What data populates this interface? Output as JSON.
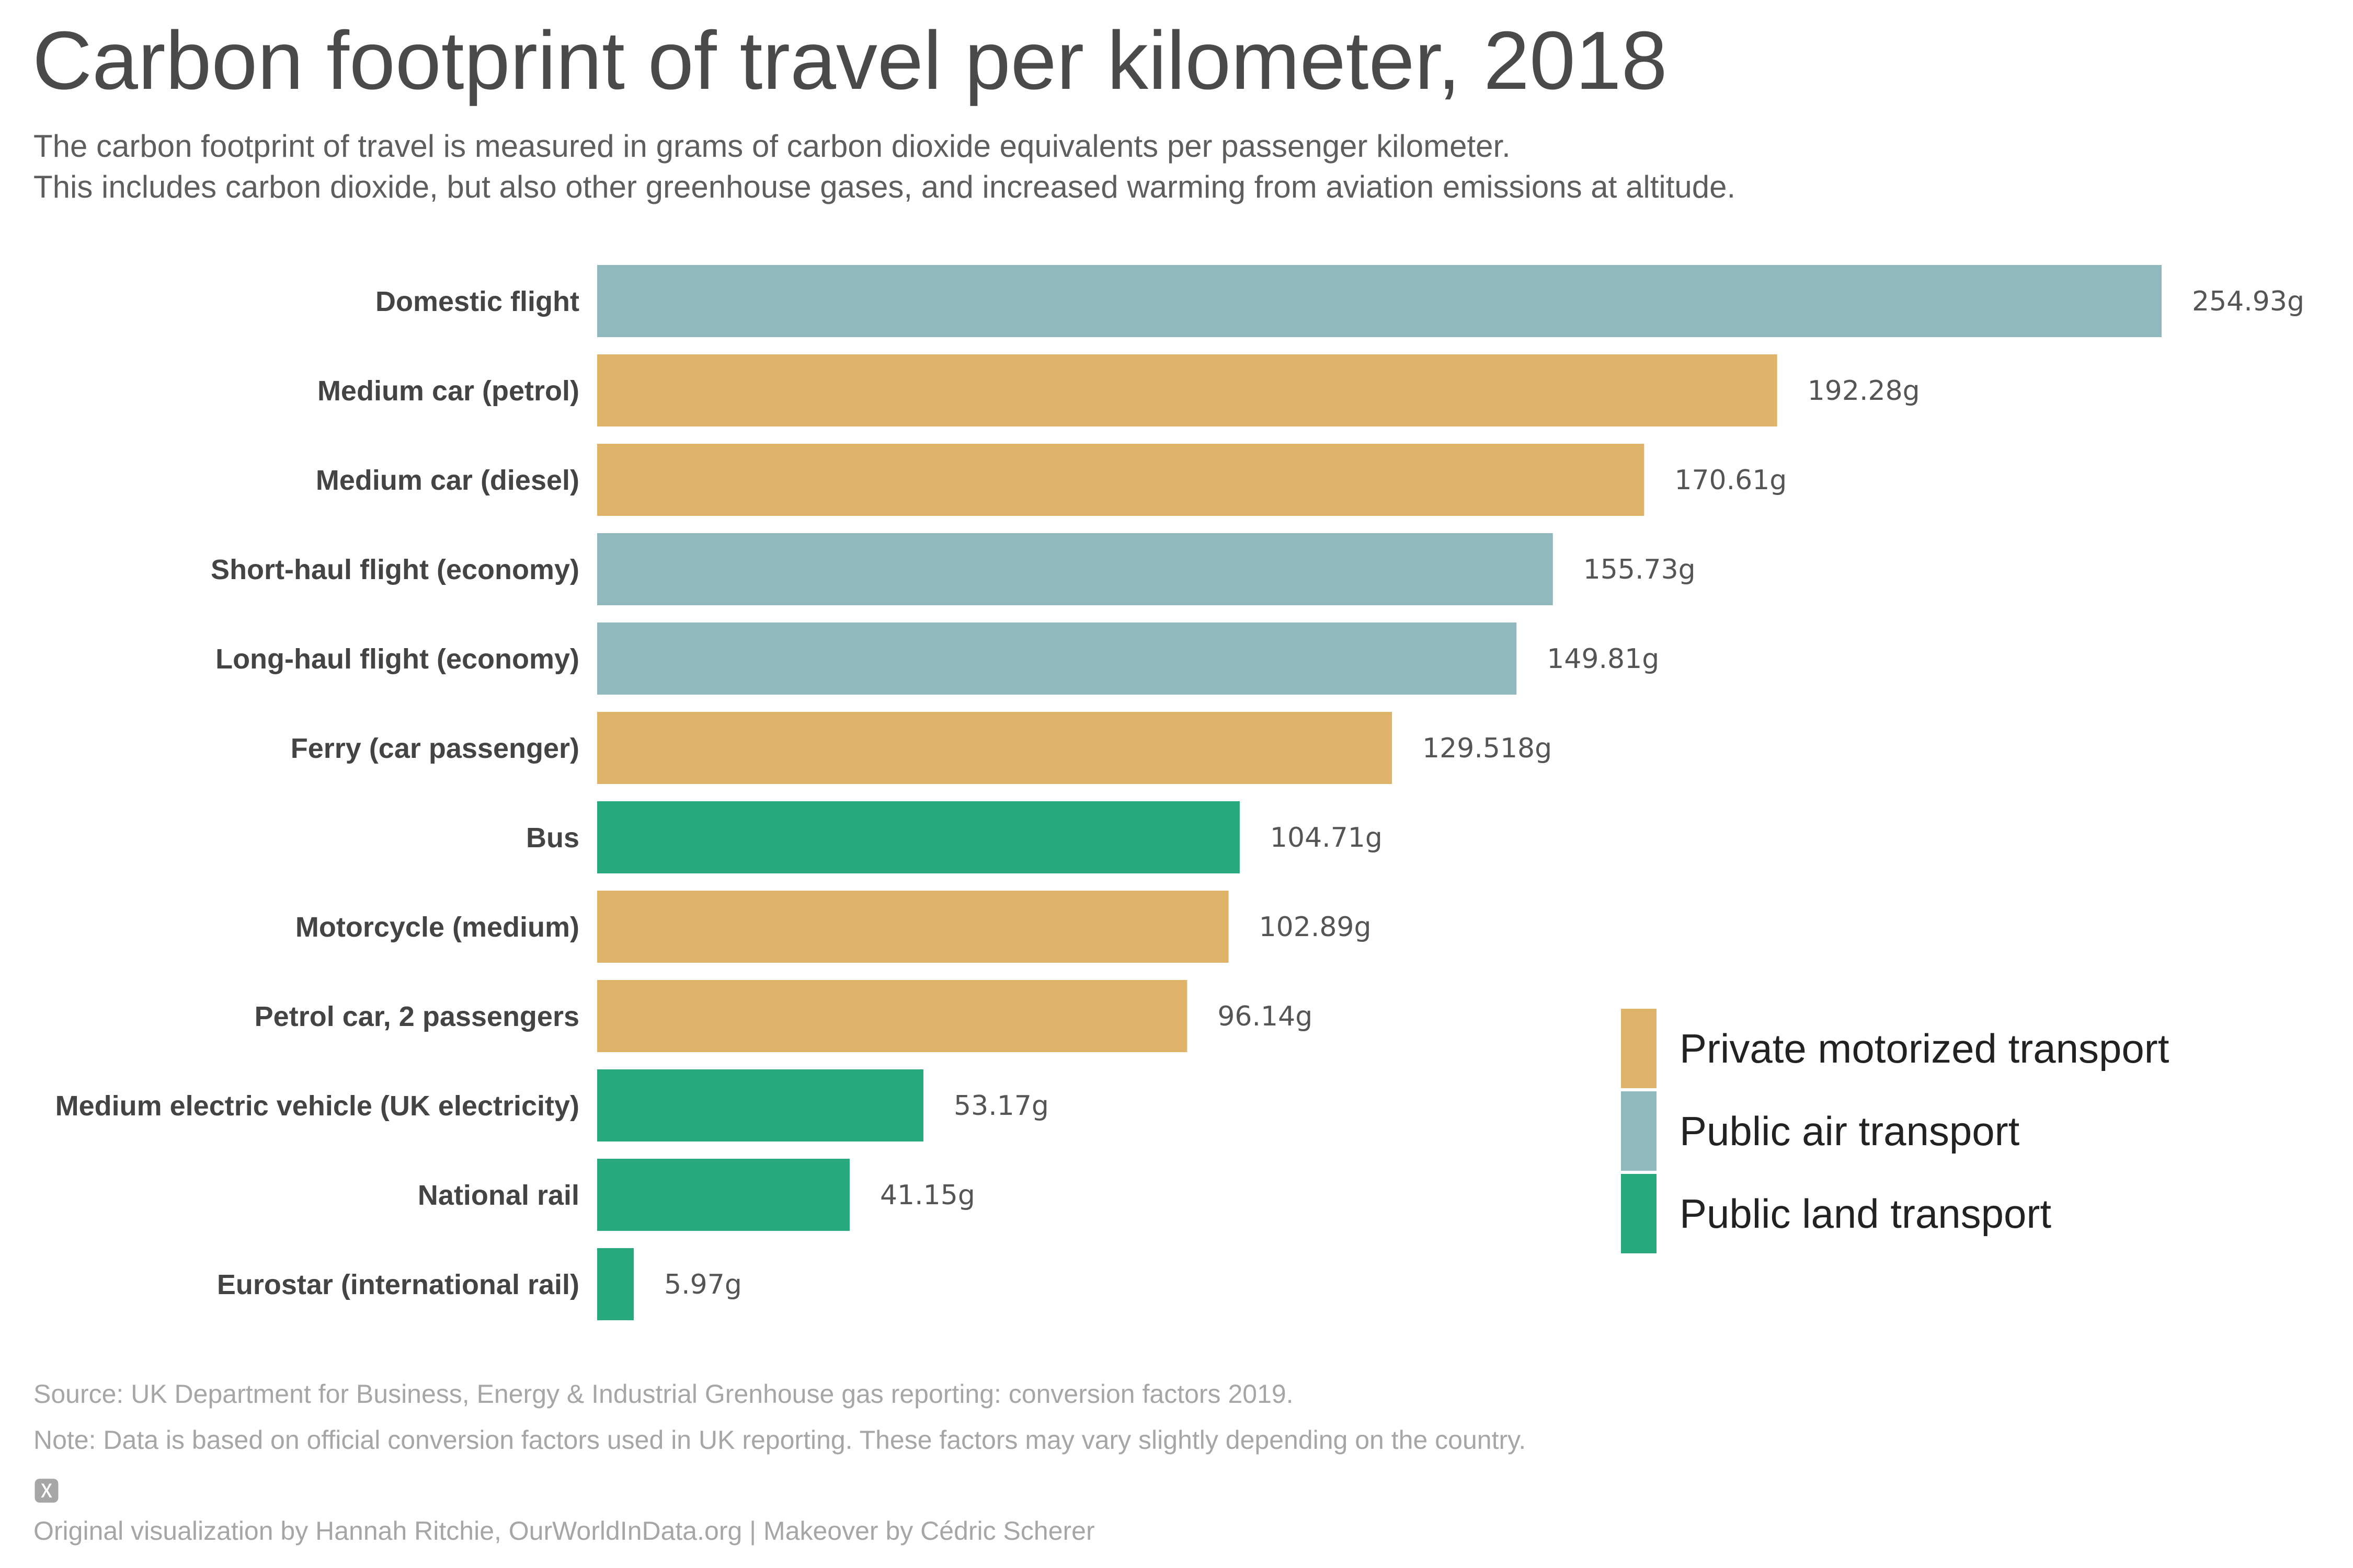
{
  "chart_data": {
    "type": "bar",
    "orientation": "horizontal",
    "title": "Carbon footprint of travel per kilometer, 2018",
    "subtitle": [
      "The carbon footprint of travel is measured in grams of carbon dioxide equivalents per passenger kilometer.",
      "This includes carbon dioxide, but also other greenhouse gases, and increased warming from aviation emissions at altitude."
    ],
    "categories": [
      "Domestic flight",
      "Medium car (petrol)",
      "Medium car (diesel)",
      "Short-haul flight (economy)",
      "Long-haul flight (economy)",
      "Ferry (car passenger)",
      "Bus",
      "Motorcycle (medium)",
      "Petrol car, 2 passengers",
      "Medium electric vehicle (UK electricity)",
      "National rail",
      "Eurostar (international rail)"
    ],
    "values": [
      254.93,
      192.28,
      170.61,
      155.73,
      149.81,
      129.518,
      104.71,
      102.89,
      96.14,
      53.17,
      41.15,
      5.97
    ],
    "value_labels": [
      "254.93g",
      "192.28g",
      "170.61g",
      "155.73g",
      "149.81g",
      "129.518g",
      "104.71g",
      "102.89g",
      "96.14g",
      "53.17g",
      "41.15g",
      "5.97g"
    ],
    "groups": [
      "Public air transport",
      "Private motorized transport",
      "Private motorized transport",
      "Public air transport",
      "Public air transport",
      "Private motorized transport",
      "Public land transport",
      "Private motorized transport",
      "Private motorized transport",
      "Public land transport",
      "Public land transport",
      "Public land transport"
    ],
    "legend": {
      "position": "bottom-right",
      "entries": [
        {
          "name": "Private motorized transport",
          "color": "#dfb36a"
        },
        {
          "name": "Public air transport",
          "color": "#91b8bd"
        },
        {
          "name": "Public land transport",
          "color": "#28a87d"
        }
      ]
    },
    "xlim": [
      0,
      254.93
    ],
    "grid": false
  },
  "footer": {
    "source": "Source: UK Department for Business, Energy & Industrial Grenhouse gas reporting: conversion factors 2019.",
    "note": "Note: Data is based on official conversion factors used in UK reporting. These factors may vary slightly depending on the country.",
    "glyph": "🆇",
    "credit": "Original visualization by Hannah Ritchie, OurWorldInData.org | Makeover by Cédric Scherer"
  }
}
